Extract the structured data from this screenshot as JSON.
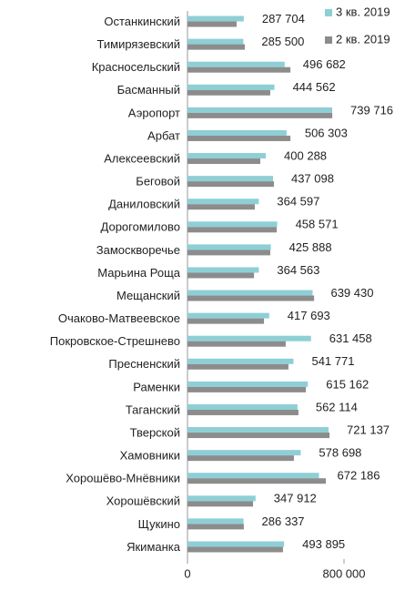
{
  "chart_data": {
    "type": "bar",
    "orientation": "horizontal",
    "categories": [
      "Останкинский",
      "Тимирязевский",
      "Красносельский",
      "Басманный",
      "Аэропорт",
      "Арбат",
      "Алексеевский",
      "Беговой",
      "Даниловский",
      "Дорогомилово",
      "Замоскворечье",
      "Марьина Роща",
      "Мещанский",
      "Очаково-Матвеевское",
      "Покровское-Стрешнево",
      "Пресненский",
      "Раменки",
      "Таганский",
      "Тверской",
      "Хамовники",
      "Хорошёво-Мнёвники",
      "Хорошёвский",
      "Щукино",
      "Якиманка"
    ],
    "series": [
      {
        "name": "3 кв. 2019",
        "color": "#8ecfd6",
        "values": [
          287704,
          285500,
          496682,
          444562,
          739716,
          506303,
          400288,
          437098,
          364597,
          458571,
          425888,
          364563,
          639430,
          417693,
          631458,
          541771,
          615162,
          562114,
          721137,
          578698,
          672186,
          347912,
          286337,
          493895
        ],
        "value_labels": [
          "287 704",
          "285 500",
          "496 682",
          "444 562",
          "739 716",
          "506 303",
          "400 288",
          "437 098",
          "364 597",
          "458 571",
          "425 888",
          "364 563",
          "639 430",
          "417 693",
          "631 458",
          "541 771",
          "615 162",
          "562 114",
          "721 137",
          "578 698",
          "672 186",
          "347 912",
          "286 337",
          "493 895"
        ]
      },
      {
        "name": "2 кв. 2019",
        "color": "#8c8c8c",
        "values": [
          251000,
          293000,
          526000,
          423000,
          740000,
          526000,
          372000,
          442000,
          344000,
          456000,
          423000,
          340000,
          647000,
          391000,
          502000,
          516000,
          605000,
          567000,
          726000,
          544000,
          707000,
          335000,
          288000,
          488000
        ]
      }
    ],
    "xlim": [
      0,
      800000
    ],
    "xticks": [
      0,
      {
        "value": 800000,
        "label": "800 000"
      }
    ],
    "legend": "top-right"
  }
}
